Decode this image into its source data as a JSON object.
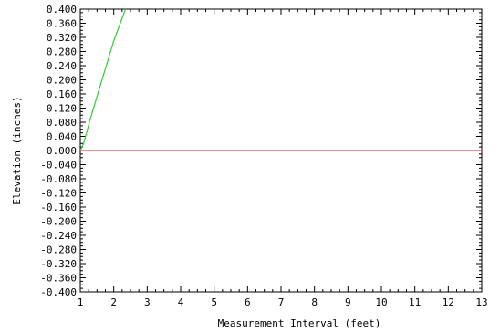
{
  "chart_data": {
    "type": "line",
    "title": "",
    "xlabel": "Measurement Interval (feet)",
    "ylabel": "Elevation (inches)",
    "xlim": [
      1,
      13
    ],
    "ylim": [
      -0.4,
      0.4
    ],
    "x_ticks": [
      "1",
      "2",
      "3",
      "4",
      "5",
      "6",
      "7",
      "8",
      "9",
      "10",
      "11",
      "12",
      "13"
    ],
    "y_ticks": [
      "0.400",
      "0.360",
      "0.320",
      "0.280",
      "0.240",
      "0.200",
      "0.160",
      "0.120",
      "0.080",
      "0.040",
      "0.000",
      "-0.040",
      "-0.080",
      "-0.120",
      "-0.160",
      "-0.200",
      "-0.240",
      "-0.280",
      "-0.320",
      "-0.360",
      "-0.400"
    ],
    "grid": false,
    "series": [
      {
        "color": "#33cc33",
        "x": [
          1,
          1.1,
          1.3,
          2.0,
          2.35
        ],
        "y": [
          0.0,
          0.02,
          0.09,
          0.31,
          0.4
        ]
      },
      {
        "color": "#e05050",
        "x": [
          1,
          13
        ],
        "y": [
          0.0,
          0.0
        ]
      }
    ]
  }
}
